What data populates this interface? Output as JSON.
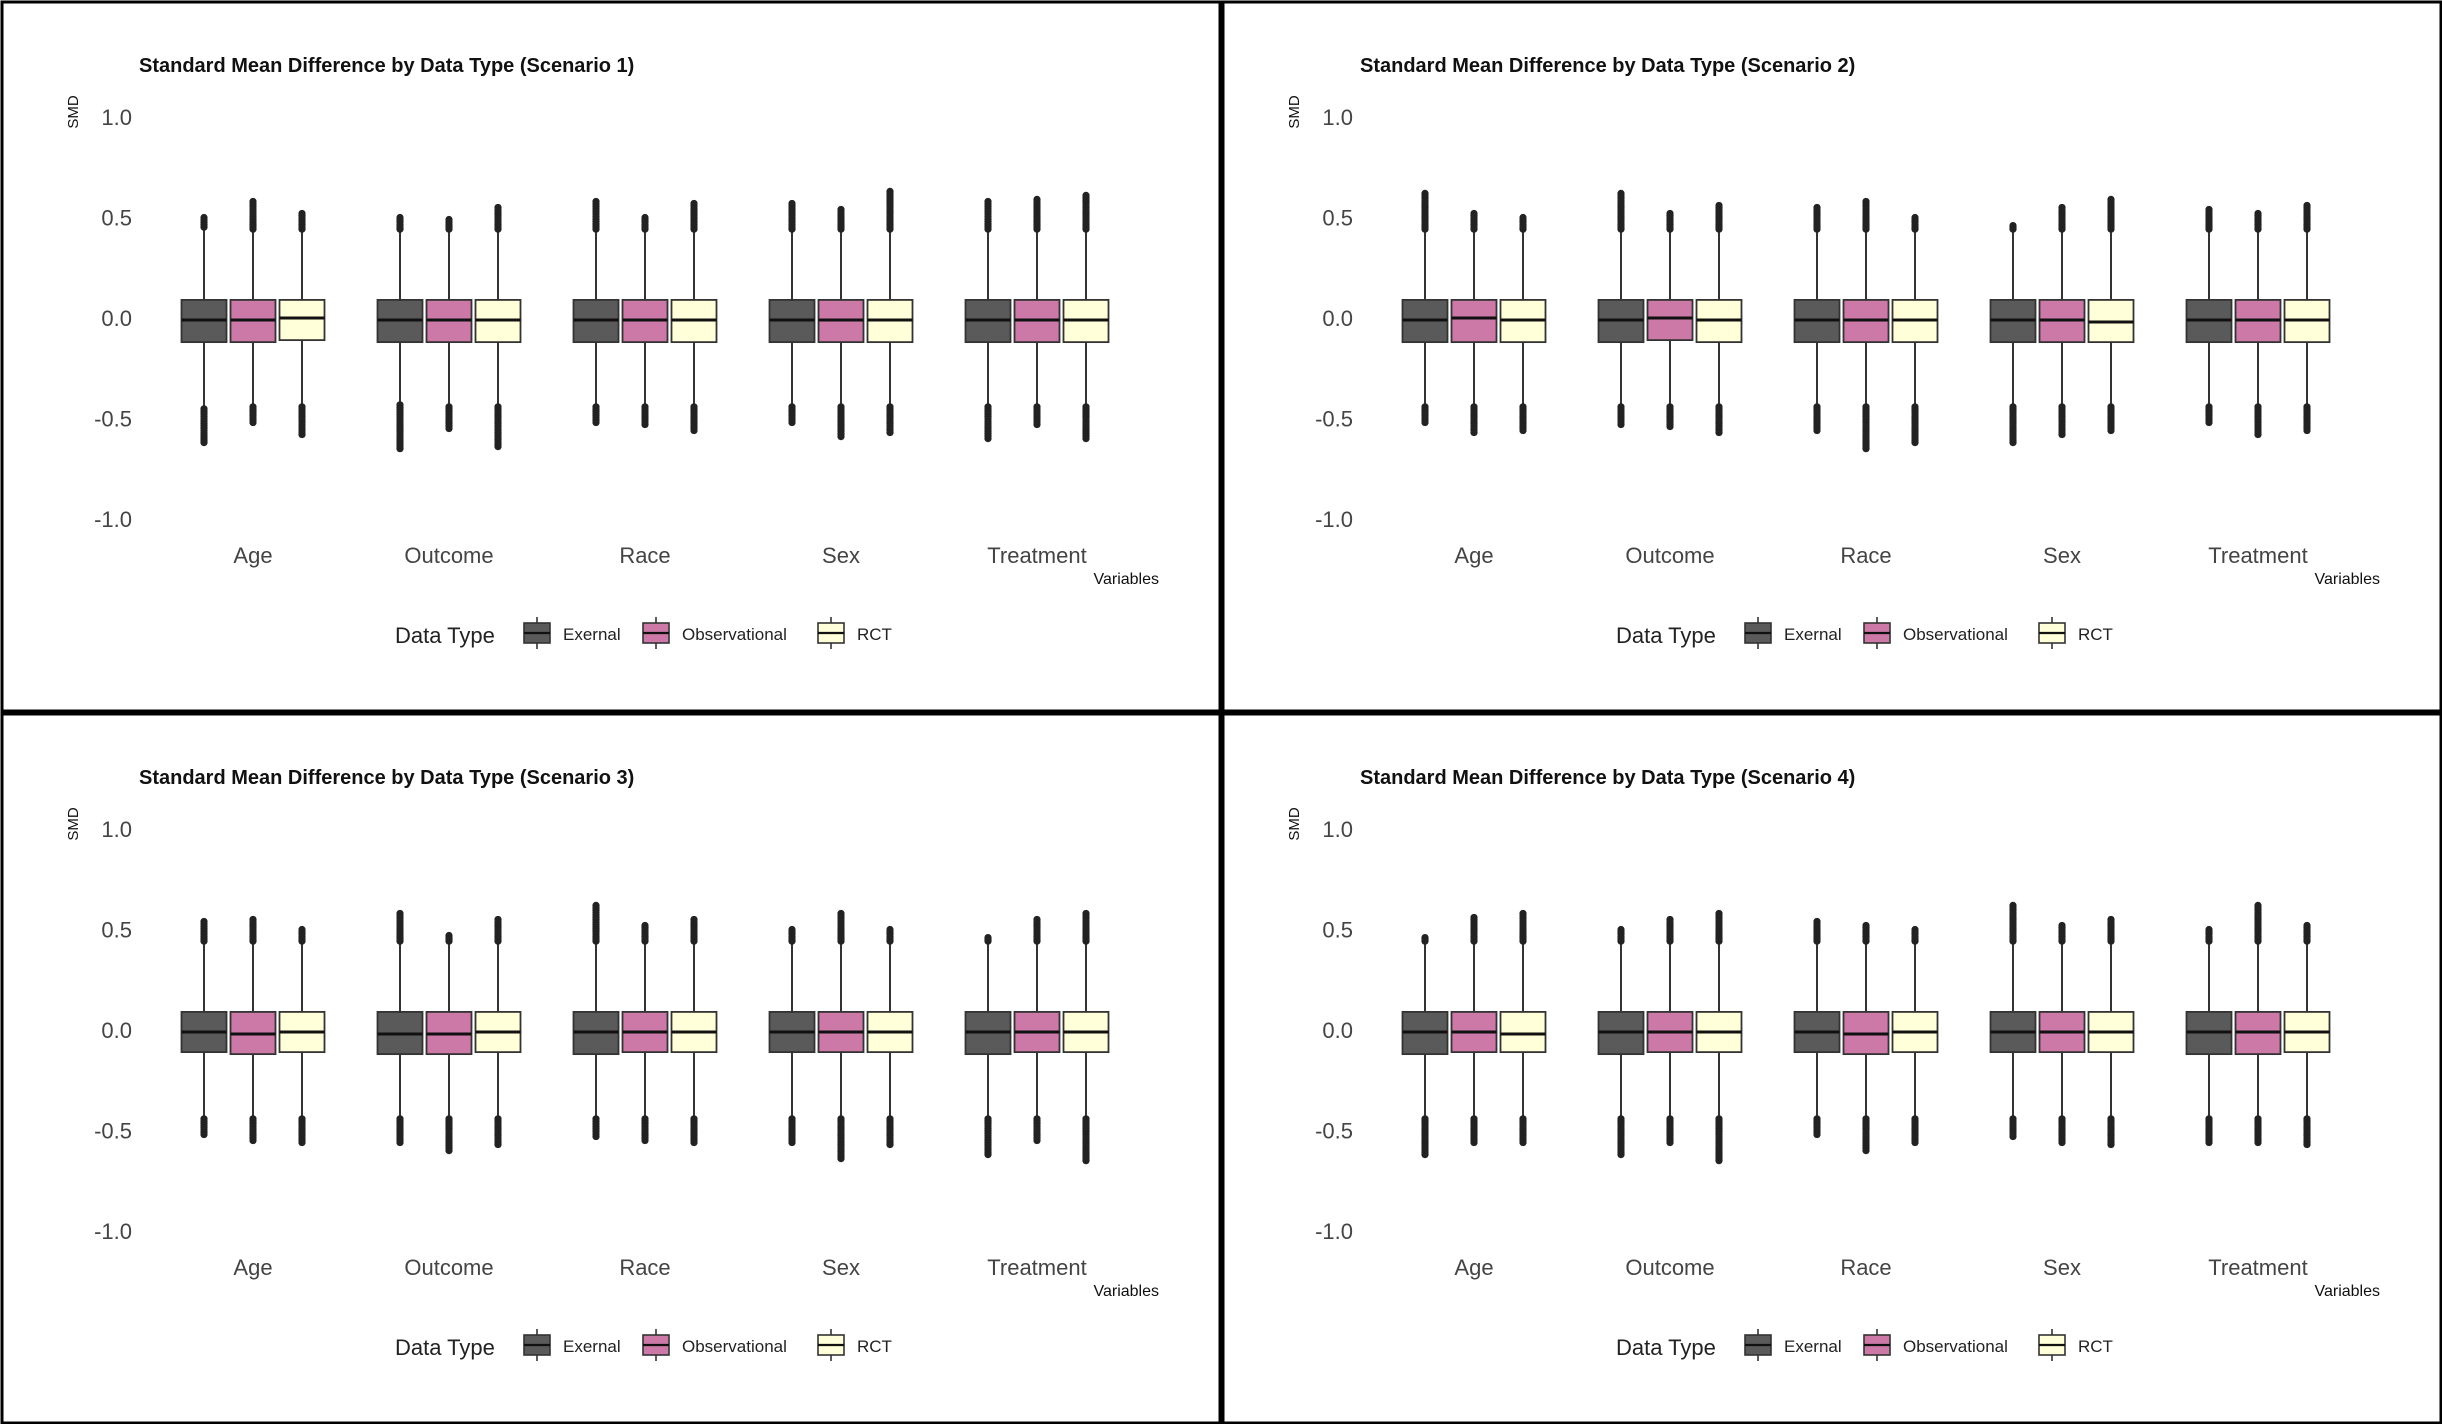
{
  "figure": {
    "panels": [
      {
        "title": "Standard Mean Difference by Data Type (Scenario 1)"
      },
      {
        "title": "Standard Mean Difference by Data Type (Scenario 2)"
      },
      {
        "title": "Standard Mean Difference by Data Type (Scenario 3)"
      },
      {
        "title": "Standard Mean Difference by Data Type (Scenario 4)"
      }
    ]
  },
  "chart_data": [
    {
      "type": "boxplot",
      "title": "Standard Mean Difference by Data Type (Scenario 1)",
      "xlabel": "Variables",
      "ylabel": "SMD",
      "ylim": [
        -1.0,
        1.0
      ],
      "yticks": [
        "1.0",
        "0.5",
        "0.0",
        "-0.5",
        "-1.0"
      ],
      "categories": [
        "Age",
        "Outcome",
        "Race",
        "Sex",
        "Treatment"
      ],
      "legend": {
        "title": "Data Type",
        "position": "bottom"
      },
      "grid": false,
      "series": [
        {
          "name": "Exernal",
          "color": "#5a5a5a",
          "boxes": [
            {
              "q1": -0.12,
              "median": -0.01,
              "q3": 0.09,
              "whisker_low": -0.44,
              "whisker_high": 0.44,
              "outlier_min": -0.62,
              "outlier_max": 0.5
            },
            {
              "q1": -0.12,
              "median": -0.01,
              "q3": 0.09,
              "whisker_low": -0.42,
              "whisker_high": 0.43,
              "outlier_min": -0.65,
              "outlier_max": 0.5
            },
            {
              "q1": -0.12,
              "median": -0.01,
              "q3": 0.09,
              "whisker_low": -0.43,
              "whisker_high": 0.43,
              "outlier_min": -0.52,
              "outlier_max": 0.58
            },
            {
              "q1": -0.12,
              "median": -0.01,
              "q3": 0.09,
              "whisker_low": -0.43,
              "whisker_high": 0.43,
              "outlier_min": -0.52,
              "outlier_max": 0.57
            },
            {
              "q1": -0.12,
              "median": -0.01,
              "q3": 0.09,
              "whisker_low": -0.43,
              "whisker_high": 0.43,
              "outlier_min": -0.6,
              "outlier_max": 0.58
            }
          ]
        },
        {
          "name": "Observational",
          "color": "#cc79a7",
          "boxes": [
            {
              "q1": -0.12,
              "median": -0.01,
              "q3": 0.09,
              "whisker_low": -0.43,
              "whisker_high": 0.43,
              "outlier_min": -0.52,
              "outlier_max": 0.58
            },
            {
              "q1": -0.12,
              "median": -0.01,
              "q3": 0.09,
              "whisker_low": -0.43,
              "whisker_high": 0.43,
              "outlier_min": -0.55,
              "outlier_max": 0.49
            },
            {
              "q1": -0.12,
              "median": -0.01,
              "q3": 0.09,
              "whisker_low": -0.43,
              "whisker_high": 0.43,
              "outlier_min": -0.53,
              "outlier_max": 0.5
            },
            {
              "q1": -0.12,
              "median": -0.01,
              "q3": 0.09,
              "whisker_low": -0.43,
              "whisker_high": 0.43,
              "outlier_min": -0.59,
              "outlier_max": 0.54
            },
            {
              "q1": -0.12,
              "median": -0.01,
              "q3": 0.09,
              "whisker_low": -0.43,
              "whisker_high": 0.43,
              "outlier_min": -0.53,
              "outlier_max": 0.59
            }
          ]
        },
        {
          "name": "RCT",
          "color": "#ffffd9",
          "boxes": [
            {
              "q1": -0.11,
              "median": 0.0,
              "q3": 0.09,
              "whisker_low": -0.43,
              "whisker_high": 0.43,
              "outlier_min": -0.58,
              "outlier_max": 0.52
            },
            {
              "q1": -0.12,
              "median": -0.01,
              "q3": 0.09,
              "whisker_low": -0.43,
              "whisker_high": 0.43,
              "outlier_min": -0.64,
              "outlier_max": 0.55
            },
            {
              "q1": -0.12,
              "median": -0.01,
              "q3": 0.09,
              "whisker_low": -0.43,
              "whisker_high": 0.43,
              "outlier_min": -0.56,
              "outlier_max": 0.57
            },
            {
              "q1": -0.12,
              "median": -0.01,
              "q3": 0.09,
              "whisker_low": -0.43,
              "whisker_high": 0.43,
              "outlier_min": -0.57,
              "outlier_max": 0.63
            },
            {
              "q1": -0.12,
              "median": -0.01,
              "q3": 0.09,
              "whisker_low": -0.43,
              "whisker_high": 0.43,
              "outlier_min": -0.6,
              "outlier_max": 0.61
            }
          ]
        }
      ]
    },
    {
      "type": "boxplot",
      "title": "Standard Mean Difference by Data Type (Scenario 2)",
      "xlabel": "Variables",
      "ylabel": "SMD",
      "ylim": [
        -1.0,
        1.0
      ],
      "yticks": [
        "1.0",
        "0.5",
        "0.0",
        "-0.5",
        "-1.0"
      ],
      "categories": [
        "Age",
        "Outcome",
        "Race",
        "Sex",
        "Treatment"
      ],
      "legend": {
        "title": "Data Type",
        "position": "bottom"
      },
      "grid": false,
      "series": [
        {
          "name": "Exernal",
          "color": "#5a5a5a",
          "boxes": [
            {
              "q1": -0.12,
              "median": -0.01,
              "q3": 0.09,
              "whisker_low": -0.43,
              "whisker_high": 0.43,
              "outlier_min": -0.52,
              "outlier_max": 0.62
            },
            {
              "q1": -0.12,
              "median": -0.01,
              "q3": 0.09,
              "whisker_low": -0.43,
              "whisker_high": 0.43,
              "outlier_min": -0.53,
              "outlier_max": 0.62
            },
            {
              "q1": -0.12,
              "median": -0.01,
              "q3": 0.09,
              "whisker_low": -0.43,
              "whisker_high": 0.43,
              "outlier_min": -0.56,
              "outlier_max": 0.55
            },
            {
              "q1": -0.12,
              "median": -0.01,
              "q3": 0.09,
              "whisker_low": -0.43,
              "whisker_high": 0.43,
              "outlier_min": -0.62,
              "outlier_max": 0.46
            },
            {
              "q1": -0.12,
              "median": -0.01,
              "q3": 0.09,
              "whisker_low": -0.43,
              "whisker_high": 0.43,
              "outlier_min": -0.52,
              "outlier_max": 0.54
            }
          ]
        },
        {
          "name": "Observational",
          "color": "#cc79a7",
          "boxes": [
            {
              "q1": -0.12,
              "median": 0.0,
              "q3": 0.09,
              "whisker_low": -0.43,
              "whisker_high": 0.43,
              "outlier_min": -0.57,
              "outlier_max": 0.52
            },
            {
              "q1": -0.11,
              "median": 0.0,
              "q3": 0.09,
              "whisker_low": -0.43,
              "whisker_high": 0.43,
              "outlier_min": -0.54,
              "outlier_max": 0.52
            },
            {
              "q1": -0.12,
              "median": -0.01,
              "q3": 0.09,
              "whisker_low": -0.43,
              "whisker_high": 0.43,
              "outlier_min": -0.65,
              "outlier_max": 0.58
            },
            {
              "q1": -0.12,
              "median": -0.01,
              "q3": 0.09,
              "whisker_low": -0.43,
              "whisker_high": 0.43,
              "outlier_min": -0.58,
              "outlier_max": 0.55
            },
            {
              "q1": -0.12,
              "median": -0.01,
              "q3": 0.09,
              "whisker_low": -0.43,
              "whisker_high": 0.43,
              "outlier_min": -0.58,
              "outlier_max": 0.52
            }
          ]
        },
        {
          "name": "RCT",
          "color": "#ffffd9",
          "boxes": [
            {
              "q1": -0.12,
              "median": -0.01,
              "q3": 0.09,
              "whisker_low": -0.43,
              "whisker_high": 0.43,
              "outlier_min": -0.56,
              "outlier_max": 0.5
            },
            {
              "q1": -0.12,
              "median": -0.01,
              "q3": 0.09,
              "whisker_low": -0.43,
              "whisker_high": 0.43,
              "outlier_min": -0.57,
              "outlier_max": 0.56
            },
            {
              "q1": -0.12,
              "median": -0.01,
              "q3": 0.09,
              "whisker_low": -0.43,
              "whisker_high": 0.43,
              "outlier_min": -0.62,
              "outlier_max": 0.5
            },
            {
              "q1": -0.12,
              "median": -0.02,
              "q3": 0.09,
              "whisker_low": -0.43,
              "whisker_high": 0.43,
              "outlier_min": -0.56,
              "outlier_max": 0.59
            },
            {
              "q1": -0.12,
              "median": -0.01,
              "q3": 0.09,
              "whisker_low": -0.43,
              "whisker_high": 0.43,
              "outlier_min": -0.56,
              "outlier_max": 0.56
            }
          ]
        }
      ]
    },
    {
      "type": "boxplot",
      "title": "Standard Mean Difference by Data Type (Scenario 3)",
      "xlabel": "Variables",
      "ylabel": "SMD",
      "ylim": [
        -1.0,
        1.0
      ],
      "yticks": [
        "1.0",
        "0.5",
        "0.0",
        "-0.5",
        "-1.0"
      ],
      "categories": [
        "Age",
        "Outcome",
        "Race",
        "Sex",
        "Treatment"
      ],
      "legend": {
        "title": "Data Type",
        "position": "bottom"
      },
      "grid": false,
      "series": [
        {
          "name": "Exernal",
          "color": "#5a5a5a",
          "boxes": [
            {
              "q1": -0.11,
              "median": -0.01,
              "q3": 0.09,
              "whisker_low": -0.43,
              "whisker_high": 0.43,
              "outlier_min": -0.52,
              "outlier_max": 0.54
            },
            {
              "q1": -0.12,
              "median": -0.02,
              "q3": 0.09,
              "whisker_low": -0.43,
              "whisker_high": 0.43,
              "outlier_min": -0.56,
              "outlier_max": 0.58
            },
            {
              "q1": -0.12,
              "median": -0.01,
              "q3": 0.09,
              "whisker_low": -0.43,
              "whisker_high": 0.43,
              "outlier_min": -0.53,
              "outlier_max": 0.62
            },
            {
              "q1": -0.11,
              "median": -0.01,
              "q3": 0.09,
              "whisker_low": -0.43,
              "whisker_high": 0.43,
              "outlier_min": -0.56,
              "outlier_max": 0.5
            },
            {
              "q1": -0.12,
              "median": -0.01,
              "q3": 0.09,
              "whisker_low": -0.43,
              "whisker_high": 0.43,
              "outlier_min": -0.62,
              "outlier_max": 0.46
            }
          ]
        },
        {
          "name": "Observational",
          "color": "#cc79a7",
          "boxes": [
            {
              "q1": -0.12,
              "median": -0.02,
              "q3": 0.09,
              "whisker_low": -0.43,
              "whisker_high": 0.43,
              "outlier_min": -0.55,
              "outlier_max": 0.55
            },
            {
              "q1": -0.12,
              "median": -0.02,
              "q3": 0.09,
              "whisker_low": -0.43,
              "whisker_high": 0.43,
              "outlier_min": -0.6,
              "outlier_max": 0.47
            },
            {
              "q1": -0.11,
              "median": -0.01,
              "q3": 0.09,
              "whisker_low": -0.43,
              "whisker_high": 0.43,
              "outlier_min": -0.55,
              "outlier_max": 0.52
            },
            {
              "q1": -0.11,
              "median": -0.01,
              "q3": 0.09,
              "whisker_low": -0.43,
              "whisker_high": 0.43,
              "outlier_min": -0.64,
              "outlier_max": 0.58
            },
            {
              "q1": -0.11,
              "median": -0.01,
              "q3": 0.09,
              "whisker_low": -0.43,
              "whisker_high": 0.43,
              "outlier_min": -0.55,
              "outlier_max": 0.55
            }
          ]
        },
        {
          "name": "RCT",
          "color": "#ffffd9",
          "boxes": [
            {
              "q1": -0.11,
              "median": -0.01,
              "q3": 0.09,
              "whisker_low": -0.43,
              "whisker_high": 0.43,
              "outlier_min": -0.56,
              "outlier_max": 0.5
            },
            {
              "q1": -0.11,
              "median": -0.01,
              "q3": 0.09,
              "whisker_low": -0.43,
              "whisker_high": 0.43,
              "outlier_min": -0.57,
              "outlier_max": 0.55
            },
            {
              "q1": -0.11,
              "median": -0.01,
              "q3": 0.09,
              "whisker_low": -0.43,
              "whisker_high": 0.43,
              "outlier_min": -0.56,
              "outlier_max": 0.55
            },
            {
              "q1": -0.11,
              "median": -0.01,
              "q3": 0.09,
              "whisker_low": -0.43,
              "whisker_high": 0.43,
              "outlier_min": -0.57,
              "outlier_max": 0.5
            },
            {
              "q1": -0.11,
              "median": -0.01,
              "q3": 0.09,
              "whisker_low": -0.43,
              "whisker_high": 0.43,
              "outlier_min": -0.65,
              "outlier_max": 0.58
            }
          ]
        }
      ]
    },
    {
      "type": "boxplot",
      "title": "Standard Mean Difference by Data Type (Scenario 4)",
      "xlabel": "Variables",
      "ylabel": "SMD",
      "ylim": [
        -1.0,
        1.0
      ],
      "yticks": [
        "1.0",
        "0.5",
        "0.0",
        "-0.5",
        "-1.0"
      ],
      "categories": [
        "Age",
        "Outcome",
        "Race",
        "Sex",
        "Treatment"
      ],
      "legend": {
        "title": "Data Type",
        "position": "bottom"
      },
      "grid": false,
      "series": [
        {
          "name": "Exernal",
          "color": "#5a5a5a",
          "boxes": [
            {
              "q1": -0.12,
              "median": -0.01,
              "q3": 0.09,
              "whisker_low": -0.43,
              "whisker_high": 0.43,
              "outlier_min": -0.62,
              "outlier_max": 0.46
            },
            {
              "q1": -0.12,
              "median": -0.01,
              "q3": 0.09,
              "whisker_low": -0.43,
              "whisker_high": 0.43,
              "outlier_min": -0.62,
              "outlier_max": 0.5
            },
            {
              "q1": -0.11,
              "median": -0.01,
              "q3": 0.09,
              "whisker_low": -0.43,
              "whisker_high": 0.43,
              "outlier_min": -0.52,
              "outlier_max": 0.54
            },
            {
              "q1": -0.11,
              "median": -0.01,
              "q3": 0.09,
              "whisker_low": -0.43,
              "whisker_high": 0.43,
              "outlier_min": -0.53,
              "outlier_max": 0.62
            },
            {
              "q1": -0.12,
              "median": -0.01,
              "q3": 0.09,
              "whisker_low": -0.43,
              "whisker_high": 0.43,
              "outlier_min": -0.56,
              "outlier_max": 0.5
            }
          ]
        },
        {
          "name": "Observational",
          "color": "#cc79a7",
          "boxes": [
            {
              "q1": -0.11,
              "median": -0.01,
              "q3": 0.09,
              "whisker_low": -0.43,
              "whisker_high": 0.43,
              "outlier_min": -0.56,
              "outlier_max": 0.56
            },
            {
              "q1": -0.11,
              "median": -0.01,
              "q3": 0.09,
              "whisker_low": -0.43,
              "whisker_high": 0.43,
              "outlier_min": -0.56,
              "outlier_max": 0.55
            },
            {
              "q1": -0.12,
              "median": -0.02,
              "q3": 0.09,
              "whisker_low": -0.43,
              "whisker_high": 0.43,
              "outlier_min": -0.6,
              "outlier_max": 0.52
            },
            {
              "q1": -0.11,
              "median": -0.01,
              "q3": 0.09,
              "whisker_low": -0.43,
              "whisker_high": 0.43,
              "outlier_min": -0.56,
              "outlier_max": 0.52
            },
            {
              "q1": -0.12,
              "median": -0.01,
              "q3": 0.09,
              "whisker_low": -0.43,
              "whisker_high": 0.43,
              "outlier_min": -0.56,
              "outlier_max": 0.62
            }
          ]
        },
        {
          "name": "RCT",
          "color": "#ffffd9",
          "boxes": [
            {
              "q1": -0.11,
              "median": -0.02,
              "q3": 0.09,
              "whisker_low": -0.43,
              "whisker_high": 0.43,
              "outlier_min": -0.56,
              "outlier_max": 0.58
            },
            {
              "q1": -0.11,
              "median": -0.01,
              "q3": 0.09,
              "whisker_low": -0.43,
              "whisker_high": 0.43,
              "outlier_min": -0.65,
              "outlier_max": 0.58
            },
            {
              "q1": -0.11,
              "median": -0.01,
              "q3": 0.09,
              "whisker_low": -0.43,
              "whisker_high": 0.43,
              "outlier_min": -0.56,
              "outlier_max": 0.5
            },
            {
              "q1": -0.11,
              "median": -0.01,
              "q3": 0.09,
              "whisker_low": -0.43,
              "whisker_high": 0.43,
              "outlier_min": -0.57,
              "outlier_max": 0.55
            },
            {
              "q1": -0.11,
              "median": -0.01,
              "q3": 0.09,
              "whisker_low": -0.43,
              "whisker_high": 0.43,
              "outlier_min": -0.57,
              "outlier_max": 0.52
            }
          ]
        }
      ]
    }
  ]
}
